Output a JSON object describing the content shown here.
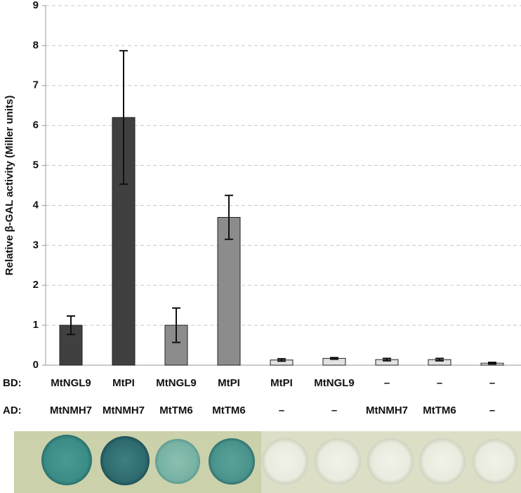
{
  "chart_data": {
    "type": "bar",
    "y_label": "Relative β-GAL activity (Miller units)",
    "row_labels": [
      "BD:",
      "AD:"
    ],
    "bd_labels": [
      "MtNGL9",
      "MtPI",
      "MtNGL9",
      "MtPI",
      "MtPI",
      "MtNGL9",
      "–",
      "–",
      "–"
    ],
    "ad_labels": [
      "MtNMH7",
      "MtNMH7",
      "MtTM6",
      "MtTM6",
      "–",
      "–",
      "MtNMH7",
      "MtTM6",
      "–"
    ],
    "values": [
      1.0,
      6.2,
      1.0,
      3.7,
      0.13,
      0.17,
      0.14,
      0.14,
      0.05
    ],
    "errors": [
      0.23,
      1.67,
      0.43,
      0.55,
      0.03,
      0.02,
      0.03,
      0.03,
      0.02
    ],
    "colors": [
      "#404040",
      "#404040",
      "#8c8c8c",
      "#8c8c8c",
      "#e2e2e2",
      "#e2e2e2",
      "#e2e2e2",
      "#e2e2e2",
      "#e2e2e2"
    ],
    "ylim": [
      0,
      9
    ],
    "yticks": [
      0,
      1,
      2,
      3,
      4,
      5,
      6,
      7,
      8,
      9
    ],
    "grid": true
  }
}
